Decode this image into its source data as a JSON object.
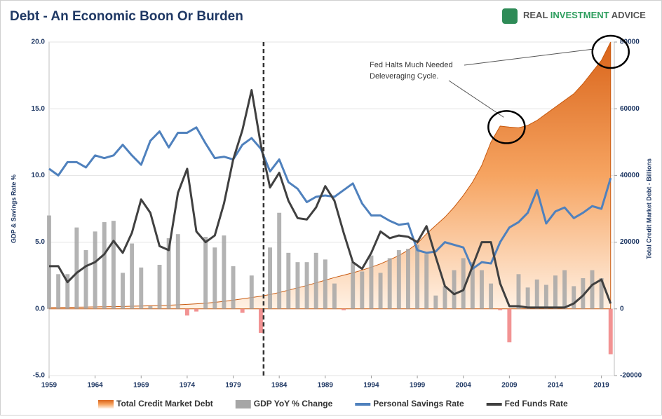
{
  "header": {
    "title": "Debt - An Economic Boon Or Burden",
    "logo": [
      "REAL",
      "INVESTMENT",
      "ADVICE"
    ]
  },
  "chart_data": {
    "type": "combo",
    "y_label": "GDP & Savings Rate %",
    "y2_label": "Total Credit Market Debt - Billions",
    "x": [
      1959,
      1960,
      1961,
      1962,
      1963,
      1964,
      1965,
      1966,
      1967,
      1968,
      1969,
      1970,
      1971,
      1972,
      1973,
      1974,
      1975,
      1976,
      1977,
      1978,
      1979,
      1980,
      1981,
      1982,
      1983,
      1984,
      1985,
      1986,
      1987,
      1988,
      1989,
      1990,
      1991,
      1992,
      1993,
      1994,
      1995,
      1996,
      1997,
      1998,
      1999,
      2000,
      2001,
      2002,
      2003,
      2004,
      2005,
      2006,
      2007,
      2008,
      2009,
      2010,
      2011,
      2012,
      2013,
      2014,
      2015,
      2016,
      2017,
      2018,
      2019,
      2020
    ],
    "xlim": [
      1959,
      2020.4
    ],
    "xticks": [
      1959,
      1964,
      1969,
      1974,
      1979,
      1984,
      1989,
      1994,
      1999,
      2004,
      2009,
      2014,
      2019
    ],
    "ylim": [
      -5,
      20
    ],
    "yticks": [
      {
        "value": -5,
        "label": "-5.0"
      },
      {
        "value": 0,
        "label": "0.0"
      },
      {
        "value": 5,
        "label": "5.0"
      },
      {
        "value": 10,
        "label": "10.0"
      },
      {
        "value": 15,
        "label": "15.0"
      },
      {
        "value": 20,
        "label": "20.0"
      }
    ],
    "y2lim": [
      -20000,
      80000
    ],
    "y2ticks": [
      -20000,
      0,
      20000,
      40000,
      60000,
      80000
    ],
    "grid": true,
    "legend": "bottom",
    "series": [
      {
        "name": "Total Credit Market Debt",
        "kind": "area",
        "axis": "y2",
        "color": "#e8772e",
        "values": [
          400,
          430,
          460,
          500,
          540,
          580,
          630,
          680,
          730,
          790,
          850,
          920,
          1000,
          1100,
          1220,
          1350,
          1500,
          1700,
          1950,
          2250,
          2600,
          3000,
          3400,
          3800,
          4300,
          4900,
          5600,
          6300,
          7000,
          7800,
          8600,
          9400,
          10100,
          10800,
          11600,
          12500,
          13500,
          14700,
          16000,
          17600,
          19600,
          22500,
          25000,
          27500,
          30500,
          34000,
          38000,
          43000,
          50000,
          54800,
          54500,
          54300,
          55000,
          56500,
          58500,
          60500,
          62500,
          64500,
          67500,
          71000,
          74500,
          80000
        ]
      },
      {
        "name": "GDP YoY % Change",
        "kind": "bar",
        "axis": "y",
        "color": "#a6a6a6",
        "negative_color": "#f08080",
        "values": [
          7.0,
          2.6,
          2.6,
          6.1,
          4.4,
          5.8,
          6.5,
          6.6,
          2.7,
          4.9,
          3.1,
          0.2,
          3.3,
          5.3,
          5.6,
          -0.5,
          -0.2,
          5.4,
          4.6,
          5.5,
          3.2,
          -0.3,
          2.5,
          -1.8,
          4.6,
          7.2,
          4.2,
          3.5,
          3.5,
          4.2,
          3.7,
          1.9,
          -0.1,
          3.5,
          2.8,
          4.0,
          2.7,
          3.8,
          4.4,
          4.5,
          4.8,
          4.1,
          1.0,
          1.7,
          2.9,
          3.8,
          3.5,
          2.9,
          1.9,
          -0.1,
          -2.5,
          2.6,
          1.6,
          2.2,
          1.8,
          2.5,
          2.9,
          1.7,
          2.3,
          2.9,
          2.3,
          -3.4
        ]
      },
      {
        "name": "Personal Savings Rate",
        "kind": "line",
        "axis": "y",
        "color": "#4f81bd",
        "values": [
          10.5,
          10,
          11,
          11,
          10.6,
          11.5,
          11.3,
          11.5,
          12.3,
          11.5,
          10.8,
          12.6,
          13.3,
          12.1,
          13.2,
          13.2,
          13.6,
          12.4,
          11.3,
          11.4,
          11.2,
          12.3,
          12.8,
          12.0,
          10.3,
          11.2,
          9.5,
          9.0,
          8.0,
          8.4,
          8.5,
          8.4,
          8.9,
          9.4,
          7.9,
          7.0,
          7.0,
          6.6,
          6.3,
          6.4,
          4.4,
          4.2,
          4.3,
          5.0,
          4.8,
          4.6,
          3.0,
          3.5,
          3.4,
          5.0,
          6.1,
          6.5,
          7.2,
          8.9,
          6.4,
          7.3,
          7.6,
          6.8,
          7.2,
          7.7,
          7.5,
          9.8
        ]
      },
      {
        "name": "Fed Funds Rate",
        "kind": "line",
        "axis": "y",
        "color": "#404040",
        "values": [
          3.2,
          3.2,
          2.0,
          2.7,
          3.2,
          3.5,
          4.1,
          5.1,
          4.2,
          5.7,
          8.2,
          7.2,
          4.7,
          4.4,
          8.7,
          10.5,
          5.8,
          5.0,
          5.5,
          7.9,
          11.2,
          13.4,
          16.4,
          12.3,
          9.1,
          10.2,
          8.1,
          6.8,
          6.7,
          7.6,
          9.2,
          8.1,
          5.7,
          3.5,
          3.0,
          4.2,
          5.8,
          5.3,
          5.5,
          5.4,
          5.0,
          6.2,
          3.9,
          1.7,
          1.1,
          1.4,
          3.2,
          5.0,
          5.0,
          1.9,
          0.2,
          0.2,
          0.1,
          0.1,
          0.1,
          0.1,
          0.1,
          0.4,
          1.0,
          1.8,
          2.2,
          0.4
        ]
      }
    ],
    "vline": 1982.3,
    "annotation": {
      "lines": [
        "Fed Halts Much Needed",
        "Deleveraging Cycle."
      ],
      "points": [
        2009,
        2020
      ]
    }
  }
}
